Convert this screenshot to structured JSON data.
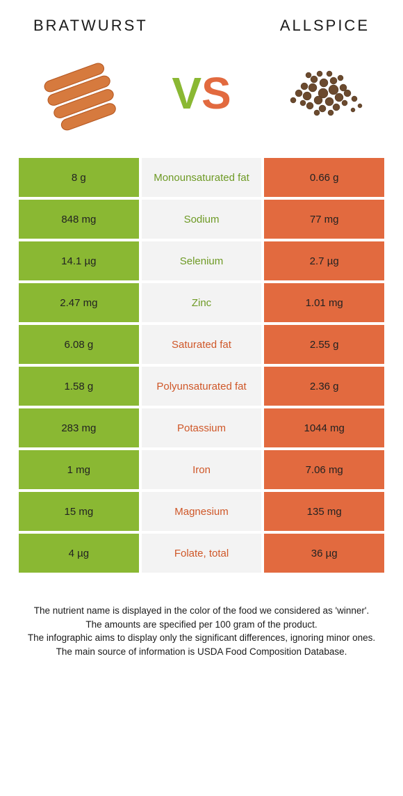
{
  "foodA": {
    "title": "BRATWURST"
  },
  "foodB": {
    "title": "ALLSPICE"
  },
  "vs": {
    "v": "V",
    "s": "S"
  },
  "colors": {
    "green": "#8ab833",
    "orange": "#e26a3f",
    "gray": "#f3f3f3",
    "greenText": "#6e9a25",
    "orangeText": "#cf5728"
  },
  "table": {
    "rows": [
      {
        "left": "8 g",
        "label": "Monounsaturated fat",
        "right": "0.66 g",
        "winner": "green"
      },
      {
        "left": "848 mg",
        "label": "Sodium",
        "right": "77 mg",
        "winner": "green"
      },
      {
        "left": "14.1 µg",
        "label": "Selenium",
        "right": "2.7 µg",
        "winner": "green"
      },
      {
        "left": "2.47 mg",
        "label": "Zinc",
        "right": "1.01 mg",
        "winner": "green"
      },
      {
        "left": "6.08 g",
        "label": "Saturated fat",
        "right": "2.55 g",
        "winner": "orange"
      },
      {
        "left": "1.58 g",
        "label": "Polyunsaturated fat",
        "right": "2.36 g",
        "winner": "orange"
      },
      {
        "left": "283 mg",
        "label": "Potassium",
        "right": "1044 mg",
        "winner": "orange"
      },
      {
        "left": "1 mg",
        "label": "Iron",
        "right": "7.06 mg",
        "winner": "orange"
      },
      {
        "left": "15 mg",
        "label": "Magnesium",
        "right": "135 mg",
        "winner": "orange"
      },
      {
        "left": "4 µg",
        "label": "Folate, total",
        "right": "36 µg",
        "winner": "orange"
      }
    ]
  },
  "footnotes": {
    "line1": "The nutrient name is displayed in the color of the food we considered as 'winner'.",
    "line2": "The amounts are specified per 100 gram of the product.",
    "line3": "The infographic aims to display only the significant differences, ignoring minor ones.",
    "line4": "The main source of information is USDA Food Composition Database."
  }
}
